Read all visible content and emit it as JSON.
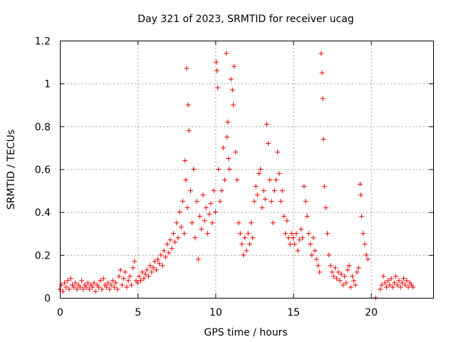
{
  "chart_data": {
    "type": "scatter",
    "title": "Day 321 of 2023, SRMTID for receiver ucag",
    "xlabel": "GPS time / hours",
    "ylabel": "SRMTID / TECUs",
    "xlim": [
      0,
      24
    ],
    "ylim": [
      0,
      1.2
    ],
    "grid": true,
    "marker": "+",
    "color": "#ee0000",
    "x_ticks": [
      "0",
      "5",
      "10",
      "15",
      "20"
    ],
    "y_ticks": [
      "0",
      "0.2",
      "0.4",
      "0.6",
      "0.8",
      "1",
      "1.2"
    ],
    "x_tick_values": [
      0,
      5,
      10,
      15,
      20
    ],
    "y_tick_values": [
      0,
      0.2,
      0.4,
      0.6,
      0.8,
      1.0,
      1.2
    ],
    "series": [
      {
        "name": "SRMTID",
        "points": [
          [
            0.0,
            0.04
          ],
          [
            0.1,
            0.06
          ],
          [
            0.2,
            0.03
          ],
          [
            0.3,
            0.07
          ],
          [
            0.4,
            0.05
          ],
          [
            0.5,
            0.08
          ],
          [
            0.6,
            0.04
          ],
          [
            0.7,
            0.09
          ],
          [
            0.8,
            0.06
          ],
          [
            0.9,
            0.05
          ],
          [
            1.0,
            0.07
          ],
          [
            1.1,
            0.04
          ],
          [
            1.2,
            0.06
          ],
          [
            1.3,
            0.05
          ],
          [
            1.4,
            0.08
          ],
          [
            1.5,
            0.04
          ],
          [
            1.6,
            0.06
          ],
          [
            1.7,
            0.05
          ],
          [
            1.8,
            0.07
          ],
          [
            1.9,
            0.04
          ],
          [
            2.0,
            0.06
          ],
          [
            2.1,
            0.05
          ],
          [
            2.2,
            0.07
          ],
          [
            2.3,
            0.03
          ],
          [
            2.4,
            0.06
          ],
          [
            2.5,
            0.05
          ],
          [
            2.6,
            0.08
          ],
          [
            2.7,
            0.04
          ],
          [
            2.8,
            0.09
          ],
          [
            2.9,
            0.06
          ],
          [
            3.0,
            0.05
          ],
          [
            3.1,
            0.07
          ],
          [
            3.2,
            0.04
          ],
          [
            3.3,
            0.06
          ],
          [
            3.4,
            0.08
          ],
          [
            3.5,
            0.05
          ],
          [
            3.6,
            0.07
          ],
          [
            3.7,
            0.04
          ],
          [
            3.8,
            0.1
          ],
          [
            3.9,
            0.13
          ],
          [
            4.0,
            0.06
          ],
          [
            4.1,
            0.09
          ],
          [
            4.2,
            0.12
          ],
          [
            4.3,
            0.05
          ],
          [
            4.4,
            0.08
          ],
          [
            4.5,
            0.1
          ],
          [
            4.6,
            0.06
          ],
          [
            4.7,
            0.14
          ],
          [
            4.8,
            0.17
          ],
          [
            4.9,
            0.08
          ],
          [
            5.0,
            0.07
          ],
          [
            5.1,
            0.1
          ],
          [
            5.2,
            0.08
          ],
          [
            5.3,
            0.12
          ],
          [
            5.4,
            0.09
          ],
          [
            5.5,
            0.11
          ],
          [
            5.6,
            0.13
          ],
          [
            5.7,
            0.1
          ],
          [
            5.8,
            0.15
          ],
          [
            5.9,
            0.12
          ],
          [
            6.0,
            0.14
          ],
          [
            6.1,
            0.17
          ],
          [
            6.2,
            0.13
          ],
          [
            6.3,
            0.18
          ],
          [
            6.4,
            0.16
          ],
          [
            6.5,
            0.2
          ],
          [
            6.6,
            0.15
          ],
          [
            6.7,
            0.22
          ],
          [
            6.8,
            0.19
          ],
          [
            6.9,
            0.25
          ],
          [
            7.0,
            0.21
          ],
          [
            7.1,
            0.27
          ],
          [
            7.2,
            0.23
          ],
          [
            7.3,
            0.3
          ],
          [
            7.4,
            0.26
          ],
          [
            7.5,
            0.35
          ],
          [
            7.6,
            0.28
          ],
          [
            7.7,
            0.4
          ],
          [
            7.8,
            0.33
          ],
          [
            7.9,
            0.45
          ],
          [
            8.0,
            0.3
          ],
          [
            8.05,
            0.64
          ],
          [
            8.1,
            0.55
          ],
          [
            8.15,
            1.07
          ],
          [
            8.2,
            0.42
          ],
          [
            8.25,
            0.9
          ],
          [
            8.3,
            0.78
          ],
          [
            8.4,
            0.5
          ],
          [
            8.5,
            0.35
          ],
          [
            8.6,
            0.6
          ],
          [
            8.7,
            0.28
          ],
          [
            8.8,
            0.45
          ],
          [
            8.9,
            0.18
          ],
          [
            9.0,
            0.38
          ],
          [
            9.1,
            0.32
          ],
          [
            9.2,
            0.48
          ],
          [
            9.3,
            0.36
          ],
          [
            9.4,
            0.42
          ],
          [
            9.5,
            0.3
          ],
          [
            9.6,
            0.39
          ],
          [
            9.7,
            0.44
          ],
          [
            9.8,
            0.35
          ],
          [
            9.9,
            0.5
          ],
          [
            10.0,
            0.4
          ],
          [
            10.05,
            1.1
          ],
          [
            10.1,
            1.06
          ],
          [
            10.15,
            0.98
          ],
          [
            10.2,
            0.6
          ],
          [
            10.3,
            0.45
          ],
          [
            10.4,
            0.5
          ],
          [
            10.5,
            0.7
          ],
          [
            10.6,
            0.55
          ],
          [
            10.7,
            1.14
          ],
          [
            10.75,
            0.75
          ],
          [
            10.8,
            0.82
          ],
          [
            10.85,
            0.65
          ],
          [
            10.9,
            0.6
          ],
          [
            11.0,
            1.02
          ],
          [
            11.1,
            0.97
          ],
          [
            11.15,
            0.9
          ],
          [
            11.2,
            1.08
          ],
          [
            11.3,
            0.68
          ],
          [
            11.4,
            0.55
          ],
          [
            11.5,
            0.35
          ],
          [
            11.6,
            0.3
          ],
          [
            11.7,
            0.25
          ],
          [
            11.8,
            0.2
          ],
          [
            11.9,
            0.28
          ],
          [
            12.0,
            0.22
          ],
          [
            12.1,
            0.3
          ],
          [
            12.2,
            0.25
          ],
          [
            12.3,
            0.35
          ],
          [
            12.4,
            0.28
          ],
          [
            12.5,
            0.45
          ],
          [
            12.6,
            0.52
          ],
          [
            12.7,
            0.48
          ],
          [
            12.8,
            0.58
          ],
          [
            12.9,
            0.6
          ],
          [
            13.0,
            0.42
          ],
          [
            13.1,
            0.5
          ],
          [
            13.2,
            0.46
          ],
          [
            13.3,
            0.81
          ],
          [
            13.4,
            0.72
          ],
          [
            13.5,
            0.55
          ],
          [
            13.6,
            0.45
          ],
          [
            13.7,
            0.35
          ],
          [
            13.8,
            0.5
          ],
          [
            13.9,
            0.55
          ],
          [
            14.0,
            0.68
          ],
          [
            14.1,
            0.58
          ],
          [
            14.2,
            0.45
          ],
          [
            14.3,
            0.5
          ],
          [
            14.4,
            0.38
          ],
          [
            14.5,
            0.3
          ],
          [
            14.6,
            0.36
          ],
          [
            14.7,
            0.28
          ],
          [
            14.8,
            0.25
          ],
          [
            14.9,
            0.3
          ],
          [
            15.0,
            0.28
          ],
          [
            15.1,
            0.25
          ],
          [
            15.2,
            0.3
          ],
          [
            15.3,
            0.22
          ],
          [
            15.4,
            0.27
          ],
          [
            15.5,
            0.32
          ],
          [
            15.6,
            0.28
          ],
          [
            15.7,
            0.52
          ],
          [
            15.8,
            0.45
          ],
          [
            15.9,
            0.38
          ],
          [
            16.0,
            0.3
          ],
          [
            16.1,
            0.25
          ],
          [
            16.2,
            0.2
          ],
          [
            16.3,
            0.28
          ],
          [
            16.4,
            0.22
          ],
          [
            16.5,
            0.18
          ],
          [
            16.6,
            0.15
          ],
          [
            16.7,
            0.12
          ],
          [
            16.8,
            1.14
          ],
          [
            16.85,
            1.05
          ],
          [
            16.9,
            0.93
          ],
          [
            16.95,
            0.74
          ],
          [
            17.0,
            0.52
          ],
          [
            17.1,
            0.42
          ],
          [
            17.2,
            0.3
          ],
          [
            17.3,
            0.2
          ],
          [
            17.4,
            0.15
          ],
          [
            17.5,
            0.12
          ],
          [
            17.6,
            0.1
          ],
          [
            17.7,
            0.14
          ],
          [
            17.8,
            0.09
          ],
          [
            17.9,
            0.12
          ],
          [
            18.0,
            0.08
          ],
          [
            18.1,
            0.11
          ],
          [
            18.2,
            0.06
          ],
          [
            18.3,
            0.1
          ],
          [
            18.4,
            0.07
          ],
          [
            18.5,
            0.13
          ],
          [
            18.6,
            0.15
          ],
          [
            18.7,
            0.05
          ],
          [
            18.8,
            0.1
          ],
          [
            18.9,
            0.08
          ],
          [
            19.0,
            0.06
          ],
          [
            19.1,
            0.12
          ],
          [
            19.2,
            0.14
          ],
          [
            19.3,
            0.53
          ],
          [
            19.35,
            0.48
          ],
          [
            19.4,
            0.38
          ],
          [
            19.5,
            0.3
          ],
          [
            19.6,
            0.25
          ],
          [
            19.7,
            0.2
          ],
          [
            19.8,
            0.18
          ],
          [
            20.3,
            0.0
          ],
          [
            20.6,
            0.04
          ],
          [
            20.7,
            0.06
          ],
          [
            20.8,
            0.1
          ],
          [
            20.9,
            0.07
          ],
          [
            21.0,
            0.05
          ],
          [
            21.1,
            0.08
          ],
          [
            21.2,
            0.06
          ],
          [
            21.3,
            0.09
          ],
          [
            21.4,
            0.05
          ],
          [
            21.5,
            0.07
          ],
          [
            21.6,
            0.1
          ],
          [
            21.7,
            0.06
          ],
          [
            21.8,
            0.08
          ],
          [
            21.9,
            0.05
          ],
          [
            22.0,
            0.07
          ],
          [
            22.1,
            0.09
          ],
          [
            22.2,
            0.06
          ],
          [
            22.3,
            0.08
          ],
          [
            22.4,
            0.05
          ],
          [
            22.5,
            0.07
          ],
          [
            22.6,
            0.06
          ],
          [
            22.7,
            0.05
          ]
        ]
      }
    ]
  }
}
